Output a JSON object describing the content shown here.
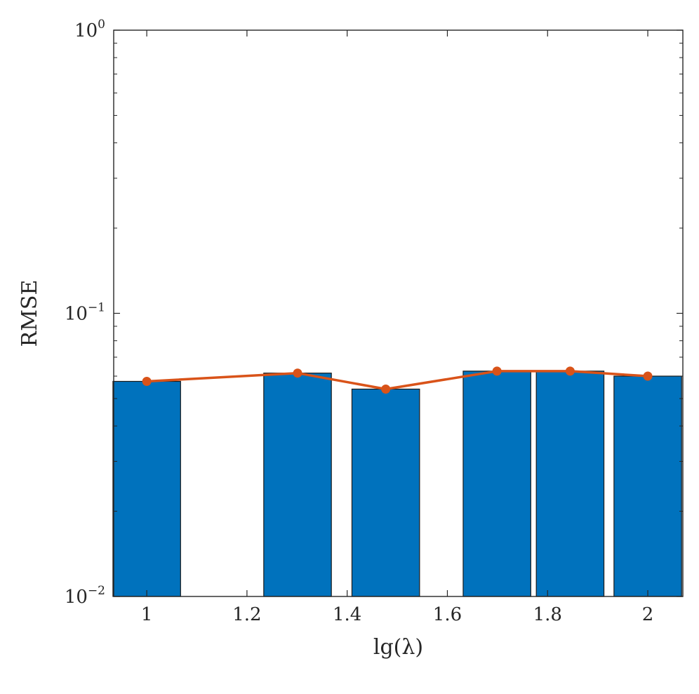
{
  "chart_data": {
    "type": "bar",
    "xlabel": "lg(λ)",
    "ylabel": "RMSE",
    "yscale": "log",
    "ylim": [
      0.01,
      1
    ],
    "xlim": [
      0.934,
      2.07
    ],
    "yticks": [
      {
        "base": "10",
        "exp": "0"
      },
      {
        "base": "10",
        "exp": "−1"
      },
      {
        "base": "10",
        "exp": "−2"
      }
    ],
    "xticks": [
      "1",
      "1.2",
      "1.4",
      "1.6",
      "1.8",
      "2"
    ],
    "xtick_values": [
      1,
      1.2,
      1.4,
      1.6,
      1.8,
      2
    ],
    "grid": false,
    "bar_width": 0.135,
    "x": [
      1.0,
      1.301,
      1.477,
      1.699,
      1.845,
      2.0
    ],
    "series": [
      {
        "type": "bar",
        "values": [
          0.0575,
          0.0615,
          0.054,
          0.0625,
          0.0625,
          0.06
        ],
        "color": "#0072BD"
      },
      {
        "type": "line",
        "values": [
          0.0575,
          0.0615,
          0.054,
          0.0625,
          0.0625,
          0.06
        ],
        "color": "#D95319"
      }
    ]
  }
}
